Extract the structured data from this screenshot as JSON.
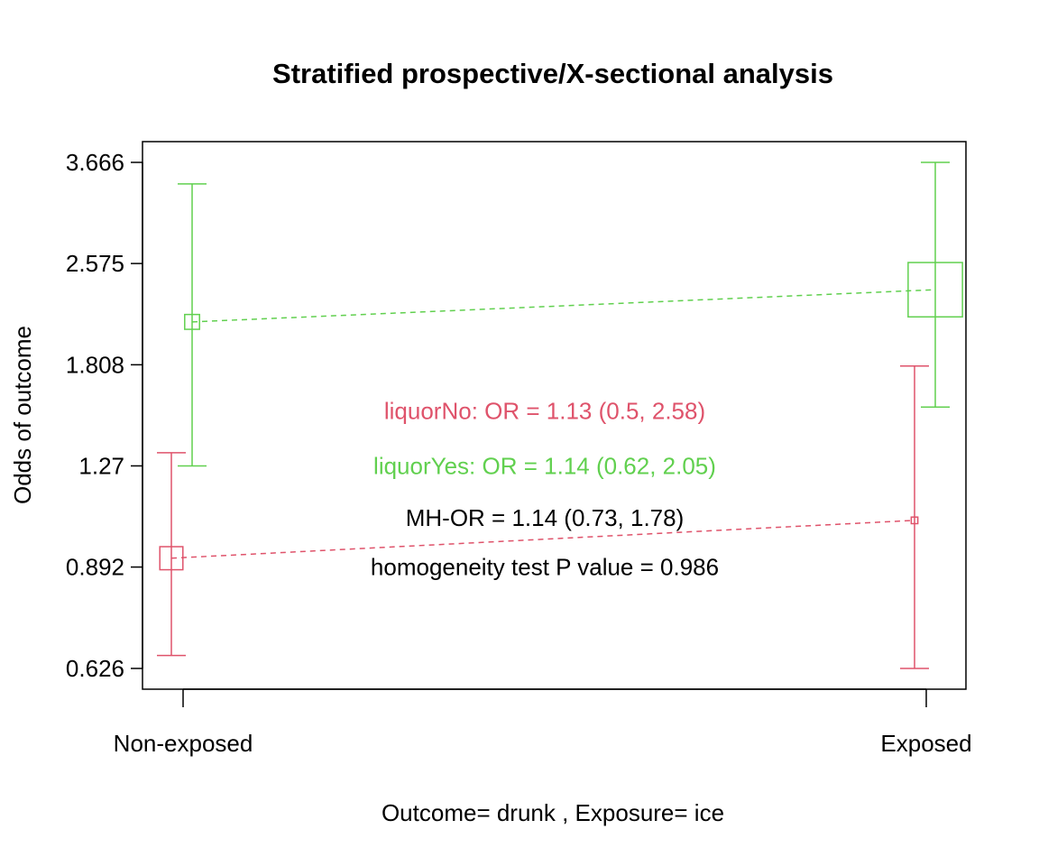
{
  "chart_data": {
    "type": "line",
    "title": "Stratified prospective/X-sectional analysis",
    "xlabel": "Outcome= drunk , Exposure= ice",
    "ylabel": "Odds of outcome",
    "y_scale": "log",
    "categories": [
      "Non-exposed",
      "Exposed"
    ],
    "y_ticks": [
      0.626,
      0.892,
      1.27,
      1.808,
      2.575,
      3.666
    ],
    "y_tick_labels": [
      "0.626",
      "0.892",
      "1.27",
      "1.808",
      "2.575",
      "3.666"
    ],
    "ylim": [
      0.6,
      3.8
    ],
    "series": [
      {
        "name": "liquorNo",
        "color": "#DF536B",
        "odds": [
          0.92,
          1.05
        ],
        "lower": [
          0.655,
          0.626
        ],
        "upper": [
          1.33,
          1.8
        ],
        "box_size": [
          0.028,
          0.008
        ]
      },
      {
        "name": "liquorYes",
        "color": "#61D04F",
        "odds": [
          2.1,
          2.35
        ],
        "lower": [
          1.27,
          1.56
        ],
        "upper": [
          3.4,
          3.666
        ],
        "box_size": [
          0.018,
          0.066
        ]
      }
    ],
    "annotations": [
      {
        "text": "liquorNo: OR = 1.13 (0.5, 2.58)",
        "color": "#DF536B",
        "y": 1.54
      },
      {
        "text": "liquorYes: OR = 1.14 (0.62, 2.05)",
        "color": "#61D04F",
        "y": 1.27
      },
      {
        "text": "MH-OR = 1.14 (0.73, 1.78)",
        "color": "#000000",
        "y": 1.06
      },
      {
        "text": "homogeneity test P value = 0.986",
        "color": "#000000",
        "y": 0.892
      }
    ]
  }
}
